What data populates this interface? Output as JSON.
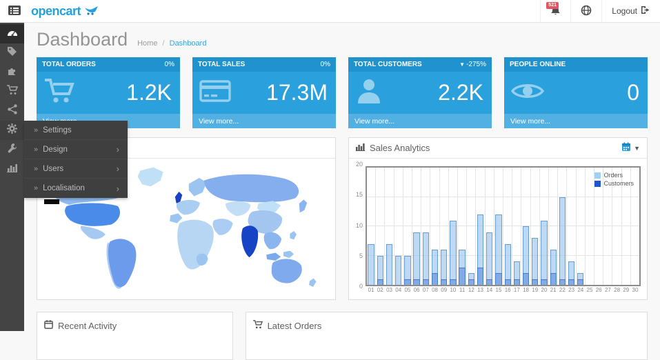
{
  "header": {
    "logo_text": "opencart",
    "notifications_badge": "521",
    "logout_label": "Logout"
  },
  "sidebar": {
    "items": [
      {
        "name": "dashboard",
        "active": true
      },
      {
        "name": "catalog",
        "active": false
      },
      {
        "name": "extensions",
        "active": false
      },
      {
        "name": "sales",
        "active": false
      },
      {
        "name": "marketing",
        "active": false
      },
      {
        "name": "system",
        "active": false,
        "open": true
      },
      {
        "name": "tools",
        "active": false
      },
      {
        "name": "reports",
        "active": false
      }
    ]
  },
  "system_flyout": {
    "items": [
      {
        "label": "Settings",
        "has_children": false
      },
      {
        "label": "Design",
        "has_children": true
      },
      {
        "label": "Users",
        "has_children": true
      },
      {
        "label": "Localisation",
        "has_children": true
      }
    ]
  },
  "page": {
    "title": "Dashboard",
    "breadcrumb_home": "Home",
    "breadcrumb_current": "Dashboard"
  },
  "tiles": [
    {
      "label": "TOTAL ORDERS",
      "delta": "0%",
      "value": "1.2K",
      "footer": "View more...",
      "icon": "cart-icon"
    },
    {
      "label": "TOTAL SALES",
      "delta": "0%",
      "value": "17.3M",
      "footer": "View more...",
      "icon": "credit-card-icon"
    },
    {
      "label": "TOTAL CUSTOMERS",
      "delta": "-275%",
      "delta_direction": "down",
      "value": "2.2K",
      "footer": "View more...",
      "icon": "user-icon"
    },
    {
      "label": "PEOPLE ONLINE",
      "delta": "",
      "value": "0",
      "footer": "View more...",
      "icon": "eye-icon"
    }
  ],
  "panels": {
    "sales_analytics": {
      "title": "Sales Analytics"
    },
    "recent_activity": {
      "title": "Recent Activity"
    },
    "latest_orders": {
      "title": "Latest Orders"
    }
  },
  "colors": {
    "accent_blue": "#2aa1dd",
    "tile_header_blue": "#2093cf",
    "tile_footer_blue": "#53b0e2",
    "badge_red": "#e4565f",
    "orders_series": "#9fd2f5",
    "customers_series": "#1d55d0"
  },
  "chart_data": {
    "type": "bar",
    "title": "Sales Analytics",
    "categories": [
      "01",
      "02",
      "03",
      "04",
      "05",
      "06",
      "07",
      "08",
      "09",
      "10",
      "11",
      "12",
      "13",
      "14",
      "15",
      "16",
      "17",
      "18",
      "19",
      "20",
      "21",
      "22",
      "23",
      "24",
      "25",
      "26",
      "27",
      "28",
      "29",
      "30"
    ],
    "series": [
      {
        "name": "Orders",
        "legend_color": "#9fd2f5",
        "values": [
          7,
          5,
          7,
          5,
          5,
          9,
          9,
          6,
          6,
          11,
          6,
          2,
          12,
          9,
          12,
          7,
          4,
          10,
          8,
          11,
          6,
          15,
          4,
          2,
          0,
          0,
          0,
          0,
          0,
          0
        ]
      },
      {
        "name": "Customers",
        "legend_color": "#1d55d0",
        "values": [
          0,
          1,
          0,
          0,
          1,
          1,
          1,
          2,
          1,
          1,
          3,
          1,
          3,
          1,
          2,
          1,
          1,
          2,
          1,
          1,
          2,
          1,
          1,
          1,
          0,
          0,
          0,
          0,
          0,
          0
        ]
      }
    ],
    "ylim": [
      0,
      20
    ],
    "yticks": [
      0,
      5,
      10,
      15,
      20
    ],
    "grid": true,
    "legend_position": "top-right"
  }
}
